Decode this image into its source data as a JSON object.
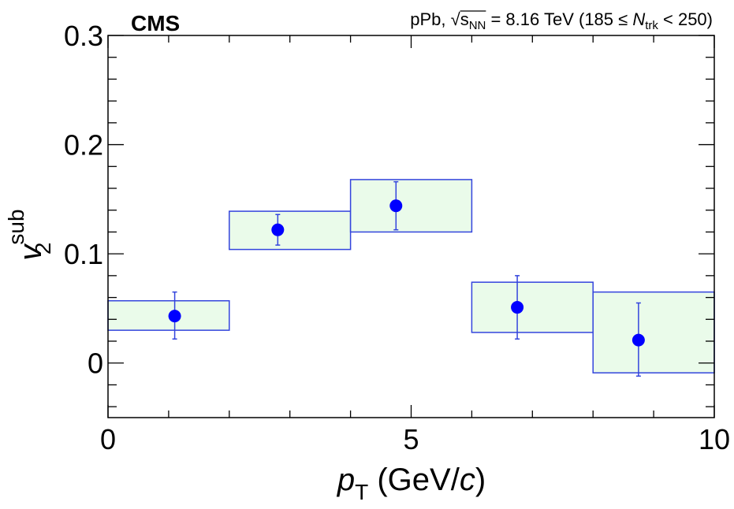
{
  "chart_data": {
    "type": "scatter",
    "experiment": "CMS",
    "title": {
      "prefix": "pPb, ",
      "sqrt": "s",
      "sqrt_sub": "NN",
      "energy": " = 8.16 TeV (185 ≤ ",
      "ntrk": "N",
      "ntrk_sub": "trk",
      "suffix": " < 250)"
    },
    "xlabel": {
      "var": "p",
      "sub": "T",
      "unit": " (GeV/",
      "unit_var": "c",
      "unit_close": ")"
    },
    "ylabel": {
      "var": "v",
      "sub": "2",
      "sup": "sub"
    },
    "xlim": [
      0,
      10
    ],
    "ylim": [
      -0.05,
      0.3
    ],
    "xticks": [
      0,
      5,
      10
    ],
    "xtick_labels": [
      "0",
      "5",
      "10"
    ],
    "yticks": [
      0,
      0.1,
      0.2,
      0.3
    ],
    "ytick_labels": [
      "0",
      "0.1",
      "0.2",
      "0.3"
    ],
    "grid": false,
    "marker_color": "#0000ff",
    "syst_fill": "#eafbea",
    "syst_edge": "#3344dd",
    "points": [
      {
        "x": 1.1,
        "y": 0.043,
        "stat_lo": 0.022,
        "stat_hi": 0.065,
        "bin_lo": 0,
        "bin_hi": 2,
        "syst_lo": 0.03,
        "syst_hi": 0.057
      },
      {
        "x": 2.8,
        "y": 0.122,
        "stat_lo": 0.108,
        "stat_hi": 0.136,
        "bin_lo": 2,
        "bin_hi": 4,
        "syst_lo": 0.104,
        "syst_hi": 0.139
      },
      {
        "x": 4.75,
        "y": 0.144,
        "stat_lo": 0.122,
        "stat_hi": 0.166,
        "bin_lo": 4,
        "bin_hi": 6,
        "syst_lo": 0.12,
        "syst_hi": 0.168
      },
      {
        "x": 6.75,
        "y": 0.051,
        "stat_lo": 0.022,
        "stat_hi": 0.08,
        "bin_lo": 6,
        "bin_hi": 8,
        "syst_lo": 0.028,
        "syst_hi": 0.074
      },
      {
        "x": 8.75,
        "y": 0.021,
        "stat_lo": -0.012,
        "stat_hi": 0.055,
        "bin_lo": 8,
        "bin_hi": 10,
        "syst_lo": -0.009,
        "syst_hi": 0.065
      }
    ]
  }
}
